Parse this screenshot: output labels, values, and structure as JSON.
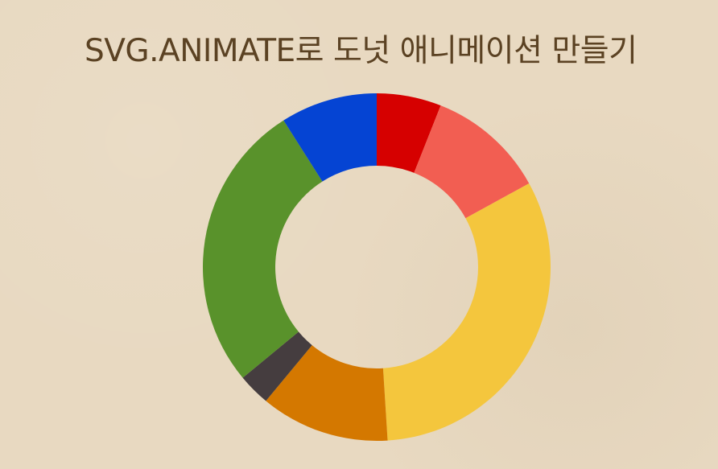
{
  "page": {
    "title": "SVG.ANIMATE로 도넛 애니메이션 만들기"
  },
  "chart_data": {
    "type": "donut",
    "title": "SVG.ANIMATE로 도넛 애니메이션 만들기",
    "values": [
      6,
      11,
      32,
      12,
      3,
      27,
      9
    ],
    "colors": [
      "#d60000",
      "#f25e52",
      "#f4c63d",
      "#d47800",
      "#453d3f",
      "#59922b",
      "#0544d3"
    ],
    "start_angle_deg": 0,
    "direction": "clockwise"
  }
}
